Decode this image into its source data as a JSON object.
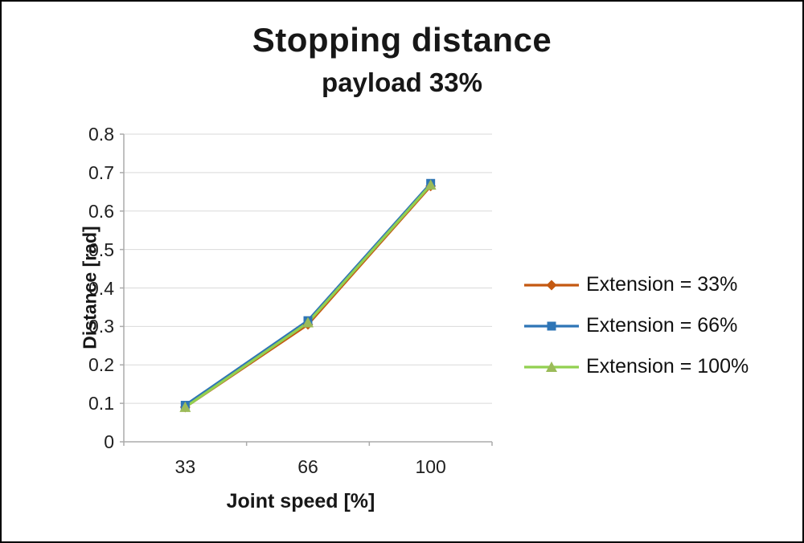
{
  "title": "Stopping distance",
  "subtitle": "payload 33%",
  "chart_data": {
    "type": "line",
    "categories": [
      "33",
      "66",
      "100"
    ],
    "series": [
      {
        "name": "Extension = 33%",
        "color": "#C45911",
        "marker": "diamond",
        "marker_color": "#C45911",
        "values": [
          0.09,
          0.305,
          0.665
        ]
      },
      {
        "name": "Extension = 66%",
        "color": "#2E75B6",
        "marker": "square",
        "marker_color": "#2E75B6",
        "values": [
          0.095,
          0.315,
          0.672
        ]
      },
      {
        "name": "Extension = 100%",
        "color": "#92D050",
        "marker": "triangle",
        "marker_color": "#9BBB59",
        "values": [
          0.09,
          0.31,
          0.668
        ]
      }
    ],
    "xlabel": "Joint speed [%]",
    "ylabel": "Distance [rad]",
    "ylim": [
      0,
      0.8
    ],
    "ytick_step": 0.1,
    "grid": true,
    "legend_position": "right",
    "colors": {
      "gridline": "#D9D9D9",
      "axis": "#ABABAB",
      "text": "#171717"
    }
  }
}
